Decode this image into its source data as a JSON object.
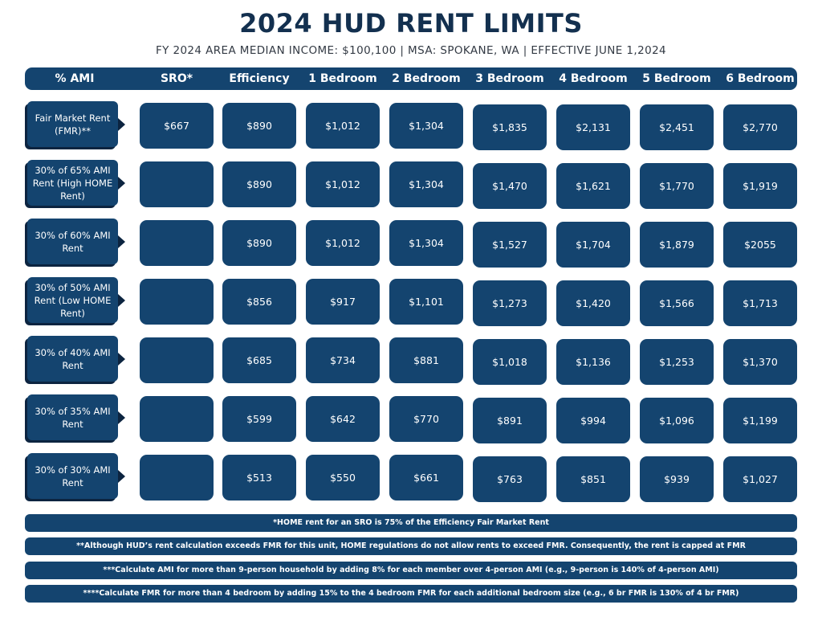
{
  "title": "2024 HUD RENT LIMITS",
  "subtitle": "FY 2024 AREA MEDIAN INCOME: $100,100  |  MSA: SPOKANE, WA  |  EFFECTIVE JUNE 1,2024",
  "table": {
    "headers": [
      "% AMI",
      "SRO*",
      "Efficiency",
      "1 Bedroom",
      "2 Bedroom",
      "3 Bedroom",
      "4 Bedroom",
      "5 Bedroom",
      "6 Bedroom"
    ],
    "rows": [
      {
        "label": "Fair Market Rent (FMR)**",
        "values": [
          "$667",
          "$890",
          "$1,012",
          "$1,304",
          "$1,835",
          "$2,131",
          "$2,451",
          "$2,770"
        ]
      },
      {
        "label": "30% of 65% AMI Rent (High HOME Rent)",
        "values": [
          "",
          "$890",
          "$1,012",
          "$1,304",
          "$1,470",
          "$1,621",
          "$1,770",
          "$1,919"
        ]
      },
      {
        "label": "30% of 60% AMI Rent",
        "values": [
          "",
          "$890",
          "$1,012",
          "$1,304",
          "$1,527",
          "$1,704",
          "$1,879",
          "$2055"
        ]
      },
      {
        "label": "30% of 50% AMI Rent (Low HOME Rent)",
        "values": [
          "",
          "$856",
          "$917",
          "$1,101",
          "$1,273",
          "$1,420",
          "$1,566",
          "$1,713"
        ]
      },
      {
        "label": "30% of 40% AMI Rent",
        "values": [
          "",
          "$685",
          "$734",
          "$881",
          "$1,018",
          "$1,136",
          "$1,253",
          "$1,370"
        ]
      },
      {
        "label": "30% of 35% AMI Rent",
        "values": [
          "",
          "$599",
          "$642",
          "$770",
          "$891",
          "$994",
          "$1,096",
          "$1,199"
        ]
      },
      {
        "label": "30% of 30% AMI Rent",
        "values": [
          "",
          "$513",
          "$550",
          "$661",
          "$763",
          "$851",
          "$939",
          "$1,027"
        ]
      }
    ]
  },
  "footnotes": [
    "*HOME rent for an SRO is 75% of the Efficiency Fair Market Rent",
    "**Although HUD’s rent calculation exceeds FMR for this unit, HOME regulations do not allow rents to exceed FMR. Consequently, the rent is capped at FMR",
    "***Calculate AMI for more than 9-person household by adding 8% for each member over 4-person AMI (e.g., 9-person is 140% of 4-person AMI)",
    "****Calculate FMR for more than 4 bedroom by adding 15% to the 4 bedroom FMR for each additional bedroom size (e.g., 6 br FMR is 130% of 4 br FMR)"
  ],
  "colors": {
    "primary": "#14446f",
    "title": "#13304f",
    "shadow": "#0c2440"
  }
}
